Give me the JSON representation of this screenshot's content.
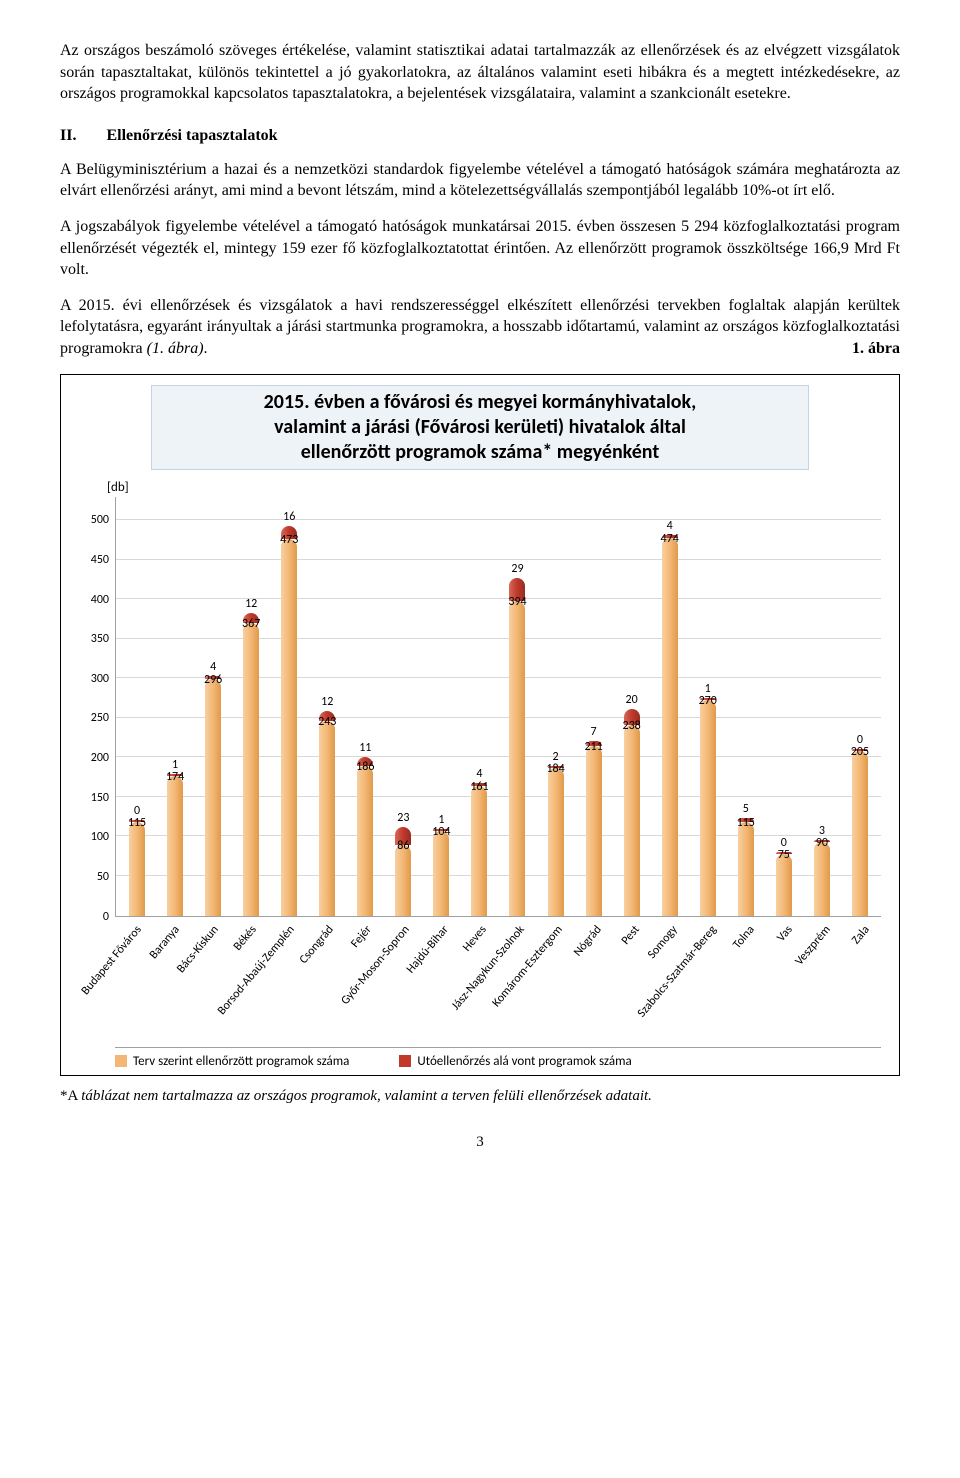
{
  "para1": "Az országos beszámoló szöveges értékelése, valamint statisztikai adatai tartalmazzák az ellenőrzések és az elvégzett vizsgálatok során tapasztaltakat, különös tekintettel a jó gyakorlatokra, az általános valamint eseti hibákra és a megtett intézkedésekre, az országos programokkal kapcsolatos tapasztalatokra, a bejelentések vizsgálataira, valamint a szankcionált esetekre.",
  "section_num": "II.",
  "section_title": "Ellenőrzési tapasztalatok",
  "para2": "A Belügyminisztérium a hazai és a nemzetközi standardok figyelembe vételével a támogató hatóságok számára meghatározta az elvárt ellenőrzési arányt, ami mind a bevont létszám, mind a kötelezettségvállalás szempontjából legalább 10%-ot írt elő.",
  "para3": "A jogszabályok figyelembe vételével a támogató hatóságok munkatársai 2015. évben összesen 5 294 közfoglalkoztatási program ellenőrzését végezték el, mintegy 159 ezer fő közfoglalkoztatottat érintően. Az ellenőrzött programok összköltsége 166,9 Mrd Ft volt.",
  "para4": "A 2015. évi ellenőrzések és vizsgálatok a havi rendszerességgel elkészített ellenőrzési tervekben foglaltak alapján kerültek lefolytatásra, egyaránt irányultak a járási startmunka programokra, a hosszabb időtartamú, valamint az országos közfoglalkoztatási programokra ",
  "para4_italic": "(1. ábra)",
  "para4_end": ".",
  "figure_label": "1. ábra",
  "chart": {
    "title_l1": "2015. évben a fővárosi és megyei kormányhivatalok,",
    "title_l2": "valamint a járási (Fővárosi kerületi) hivatalok által",
    "title_l3": "ellenőrzött programok száma* megyénként",
    "unit": "[db]",
    "ymax": 530,
    "yticks": [
      0,
      50,
      100,
      150,
      200,
      250,
      300,
      350,
      400,
      450,
      500
    ],
    "color_main": "#f3b775",
    "color_cap": "#c0392b",
    "grid_color": "#d8d8d8",
    "categories": [
      {
        "name": "Budapest Főváros",
        "main": 115,
        "cap": 0
      },
      {
        "name": "Baranya",
        "main": 174,
        "cap": 1
      },
      {
        "name": "Bács-Kiskun",
        "main": 296,
        "cap": 4
      },
      {
        "name": "Békés",
        "main": 367,
        "cap": 12
      },
      {
        "name": "Borsod-Abaúj-Zemplén",
        "main": 473,
        "cap": 16
      },
      {
        "name": "Csongrád",
        "main": 243,
        "cap": 12
      },
      {
        "name": "Fejér",
        "main": 186,
        "cap": 11
      },
      {
        "name": "Győr-Moson-Sopron",
        "main": 86,
        "cap": 23
      },
      {
        "name": "Hajdú-Bihar",
        "main": 104,
        "cap": 1
      },
      {
        "name": "Heves",
        "main": 161,
        "cap": 4
      },
      {
        "name": "Jász-Nagykun-Szolnok",
        "main": 394,
        "cap": 29
      },
      {
        "name": "Komárom-Esztergom",
        "main": 184,
        "cap": 2
      },
      {
        "name": "Nógrád",
        "main": 211,
        "cap": 7
      },
      {
        "name": "Pest",
        "main": 238,
        "cap": 20
      },
      {
        "name": "Somogy",
        "main": 474,
        "cap": 4
      },
      {
        "name": "Szabolcs-Szatmár-Bereg",
        "main": 270,
        "cap": 1
      },
      {
        "name": "Tolna",
        "main": 115,
        "cap": 5
      },
      {
        "name": "Vas",
        "main": 75,
        "cap": 0
      },
      {
        "name": "Veszprém",
        "main": 90,
        "cap": 3
      },
      {
        "name": "Zala",
        "main": 205,
        "cap": 0
      }
    ],
    "legend_main": "Terv szerint ellenőrzött programok száma",
    "legend_cap": "Utóellenőrzés alá vont programok száma"
  },
  "footnote_prefix": "*A ",
  "footnote_italic": "táblázat nem tartalmazza az országos programok, valamint a terven felüli ellenőrzések adatait.",
  "page_num": "3"
}
